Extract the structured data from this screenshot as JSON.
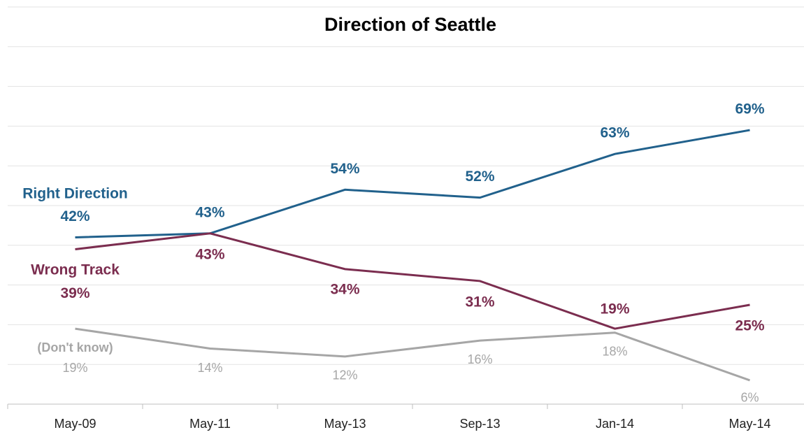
{
  "chart_data": {
    "type": "line",
    "title": "Direction of Seattle",
    "categories": [
      "May-09",
      "May-11",
      "May-13",
      "Sep-13",
      "Jan-14",
      "May-14"
    ],
    "series": [
      {
        "name": "Right Direction",
        "color": "#21618c",
        "values": [
          42,
          43,
          54,
          52,
          63,
          69
        ],
        "value_labels": [
          "42%",
          "43%",
          "54%",
          "52%",
          "63%",
          "69%"
        ]
      },
      {
        "name": "Wrong Track",
        "color": "#7b2d4f",
        "values": [
          39,
          43,
          34,
          31,
          19,
          25
        ],
        "value_labels": [
          "39%",
          "43%",
          "34%",
          "31%",
          "19%",
          "25%"
        ]
      },
      {
        "name": "(Don't know)",
        "color": "#a6a6a6",
        "values": [
          19,
          14,
          12,
          16,
          18,
          6
        ],
        "value_labels": [
          "19%",
          "14%",
          "12%",
          "16%",
          "18%",
          "6%"
        ]
      }
    ],
    "ylim": [
      0,
      100
    ],
    "yticks": [
      0,
      10,
      20,
      30,
      40,
      50,
      60,
      70,
      80,
      90,
      100
    ],
    "grid": true
  }
}
